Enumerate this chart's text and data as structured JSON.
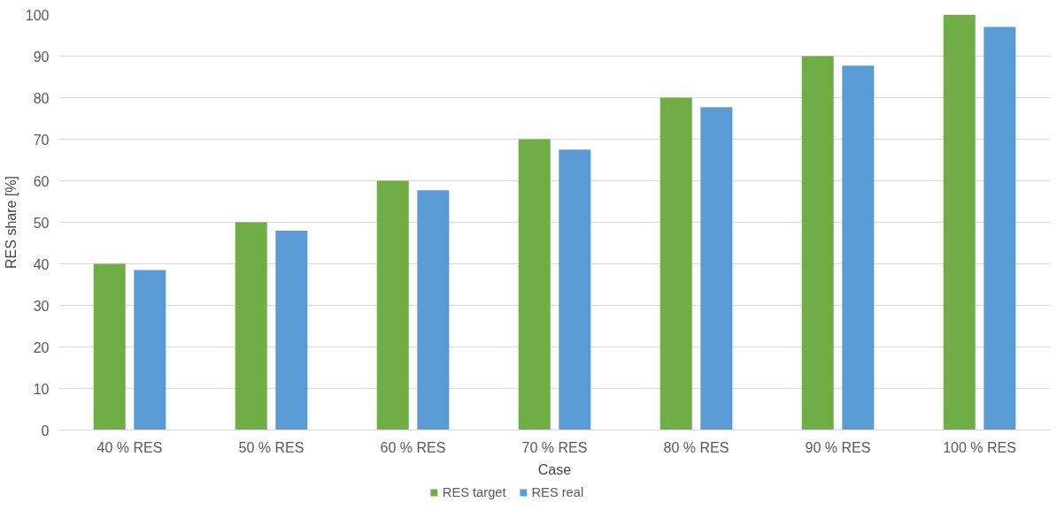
{
  "chart_data": {
    "type": "bar",
    "xlabel": "Case",
    "ylabel": "RES share [%]",
    "categories": [
      "40 % RES",
      "50 % RES",
      "60 % RES",
      "70 % RES",
      "80 % RES",
      "90 % RES",
      "100 % RES"
    ],
    "series": [
      {
        "name": "RES target",
        "color": "#70ad47",
        "values": [
          40,
          50,
          60,
          70,
          80,
          90,
          100
        ]
      },
      {
        "name": "RES real",
        "color": "#5b9bd5",
        "values": [
          38.5,
          48,
          57.7,
          67.5,
          77.7,
          87.7,
          97
        ]
      }
    ],
    "ylim": [
      0,
      100
    ],
    "yticks": [
      0,
      10,
      20,
      30,
      40,
      50,
      60,
      70,
      80,
      90,
      100
    ],
    "grid": "y",
    "legend": "bottom"
  }
}
